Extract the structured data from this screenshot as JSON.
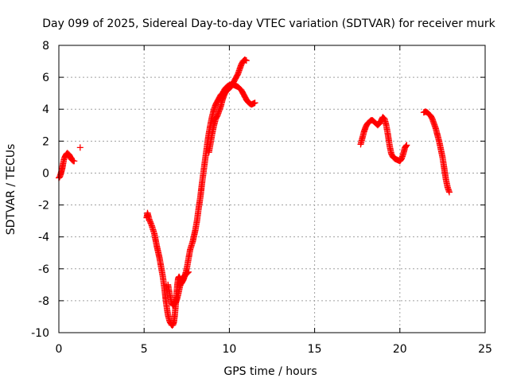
{
  "chart_data": {
    "type": "scatter",
    "title": "Day 099 of 2025, Sidereal Day-to-day VTEC variation (SDTVAR) for receiver murk",
    "xlabel": "GPS time / hours",
    "ylabel": "SDTVAR / TECUs",
    "xlim": [
      0,
      25
    ],
    "ylim": [
      -10,
      8
    ],
    "xticks": [
      0,
      5,
      10,
      15,
      20,
      25
    ],
    "yticks": [
      -10,
      -8,
      -6,
      -4,
      -2,
      0,
      2,
      4,
      6,
      8
    ],
    "grid": true,
    "marker": "plus",
    "color": "#ff0000",
    "series": [
      {
        "segments": [
          {
            "x": [
              0.0,
              0.05,
              0.1,
              0.15,
              0.2,
              0.25,
              0.3,
              0.35,
              0.4,
              0.45,
              0.5,
              0.55,
              0.6,
              0.65,
              0.7,
              0.75,
              0.8,
              0.85,
              0.9
            ],
            "y": [
              -0.3,
              -0.25,
              -0.1,
              0.1,
              0.3,
              0.6,
              0.85,
              1.0,
              1.1,
              1.2,
              1.25,
              1.2,
              1.15,
              1.05,
              0.95,
              0.85,
              0.8,
              0.75,
              0.75
            ]
          },
          {
            "x": [
              1.25
            ],
            "y": [
              1.6
            ]
          },
          {
            "x": [
              5.15,
              5.2,
              5.3,
              5.45,
              5.6,
              5.75,
              5.9,
              6.0,
              6.1,
              6.2,
              6.3,
              6.4,
              6.5,
              6.6,
              6.65,
              6.7,
              6.75,
              6.8,
              6.85,
              6.9,
              6.95,
              7.0,
              7.05,
              7.1,
              7.2,
              7.3,
              7.4,
              7.5,
              7.6,
              7.7,
              7.85,
              8.0,
              8.1,
              8.2,
              8.3,
              8.4,
              8.5,
              8.6,
              8.7,
              8.8,
              8.9,
              9.0,
              9.1,
              9.2,
              9.3,
              9.4,
              9.5,
              9.6,
              9.7,
              9.8,
              9.9,
              10.0,
              10.1,
              10.2,
              10.3,
              10.4,
              10.5,
              10.6,
              10.7,
              10.8,
              10.9,
              11.0,
              11.1,
              11.2,
              11.3,
              11.4,
              11.5
            ],
            "y": [
              -2.8,
              -2.5,
              -2.9,
              -3.3,
              -3.8,
              -4.6,
              -5.3,
              -5.9,
              -6.5,
              -7.3,
              -8.2,
              -8.9,
              -9.3,
              -9.5,
              -9.55,
              -9.5,
              -9.3,
              -8.9,
              -8.3,
              -7.6,
              -7.0,
              -6.6,
              -6.5,
              -6.6,
              -6.9,
              -6.7,
              -6.4,
              -6.0,
              -5.4,
              -4.8,
              -4.3,
              -3.6,
              -3.0,
              -2.2,
              -1.5,
              -0.6,
              0.2,
              1.0,
              1.8,
              2.5,
              3.1,
              3.6,
              4.0,
              4.3,
              4.5,
              4.7,
              4.9,
              5.0,
              5.2,
              5.35,
              5.45,
              5.5,
              5.55,
              5.55,
              5.5,
              5.45,
              5.4,
              5.3,
              5.2,
              5.0,
              4.8,
              4.6,
              4.45,
              4.35,
              4.3,
              4.35,
              4.4
            ]
          },
          {
            "x": [
              6.4,
              6.5,
              6.6,
              6.7,
              6.8,
              6.9,
              7.0,
              7.1,
              7.2,
              7.3,
              7.4,
              7.5,
              7.6
            ],
            "y": [
              -7.0,
              -7.6,
              -8.1,
              -8.3,
              -8.2,
              -8.0,
              -7.6,
              -7.1,
              -6.8,
              -6.5,
              -6.4,
              -6.3,
              -6.2
            ]
          },
          {
            "x": [
              8.8,
              8.9,
              9.0,
              9.1,
              9.2,
              9.3,
              9.4,
              9.5,
              9.6,
              9.7,
              9.8,
              9.9,
              10.0,
              10.1,
              10.2,
              10.3,
              10.4,
              10.5,
              10.6,
              10.7,
              10.8,
              10.9,
              11.0
            ],
            "y": [
              1.3,
              1.9,
              2.5,
              3.0,
              3.4,
              3.6,
              3.9,
              4.2,
              4.6,
              4.9,
              5.1,
              5.2,
              5.3,
              5.4,
              5.6,
              5.8,
              6.0,
              6.2,
              6.5,
              6.8,
              7.0,
              7.1,
              7.05
            ]
          },
          {
            "x": [
              17.7,
              17.8,
              17.9,
              18.0,
              18.1,
              18.2,
              18.3,
              18.4,
              18.5,
              18.6,
              18.7,
              18.8,
              18.9,
              19.0,
              19.1,
              19.2,
              19.3,
              19.4,
              19.5,
              19.6,
              19.7,
              19.8,
              19.9,
              20.0,
              20.1,
              20.2,
              20.3,
              20.4
            ],
            "y": [
              1.8,
              2.2,
              2.6,
              2.9,
              3.1,
              3.2,
              3.3,
              3.3,
              3.2,
              3.1,
              3.0,
              3.1,
              3.3,
              3.5,
              3.4,
              3.0,
              2.4,
              1.7,
              1.2,
              1.0,
              0.9,
              0.85,
              0.8,
              0.75,
              0.9,
              1.2,
              1.6,
              1.75
            ]
          },
          {
            "x": [
              21.4,
              21.5,
              21.6,
              21.7,
              21.8,
              21.9,
              22.0,
              22.1,
              22.2,
              22.3,
              22.4,
              22.5,
              22.6,
              22.7,
              22.8,
              22.9
            ],
            "y": [
              3.8,
              3.85,
              3.8,
              3.7,
              3.6,
              3.4,
              3.1,
              2.8,
              2.4,
              2.0,
              1.5,
              1.0,
              0.3,
              -0.4,
              -0.9,
              -1.2
            ]
          }
        ]
      }
    ]
  }
}
